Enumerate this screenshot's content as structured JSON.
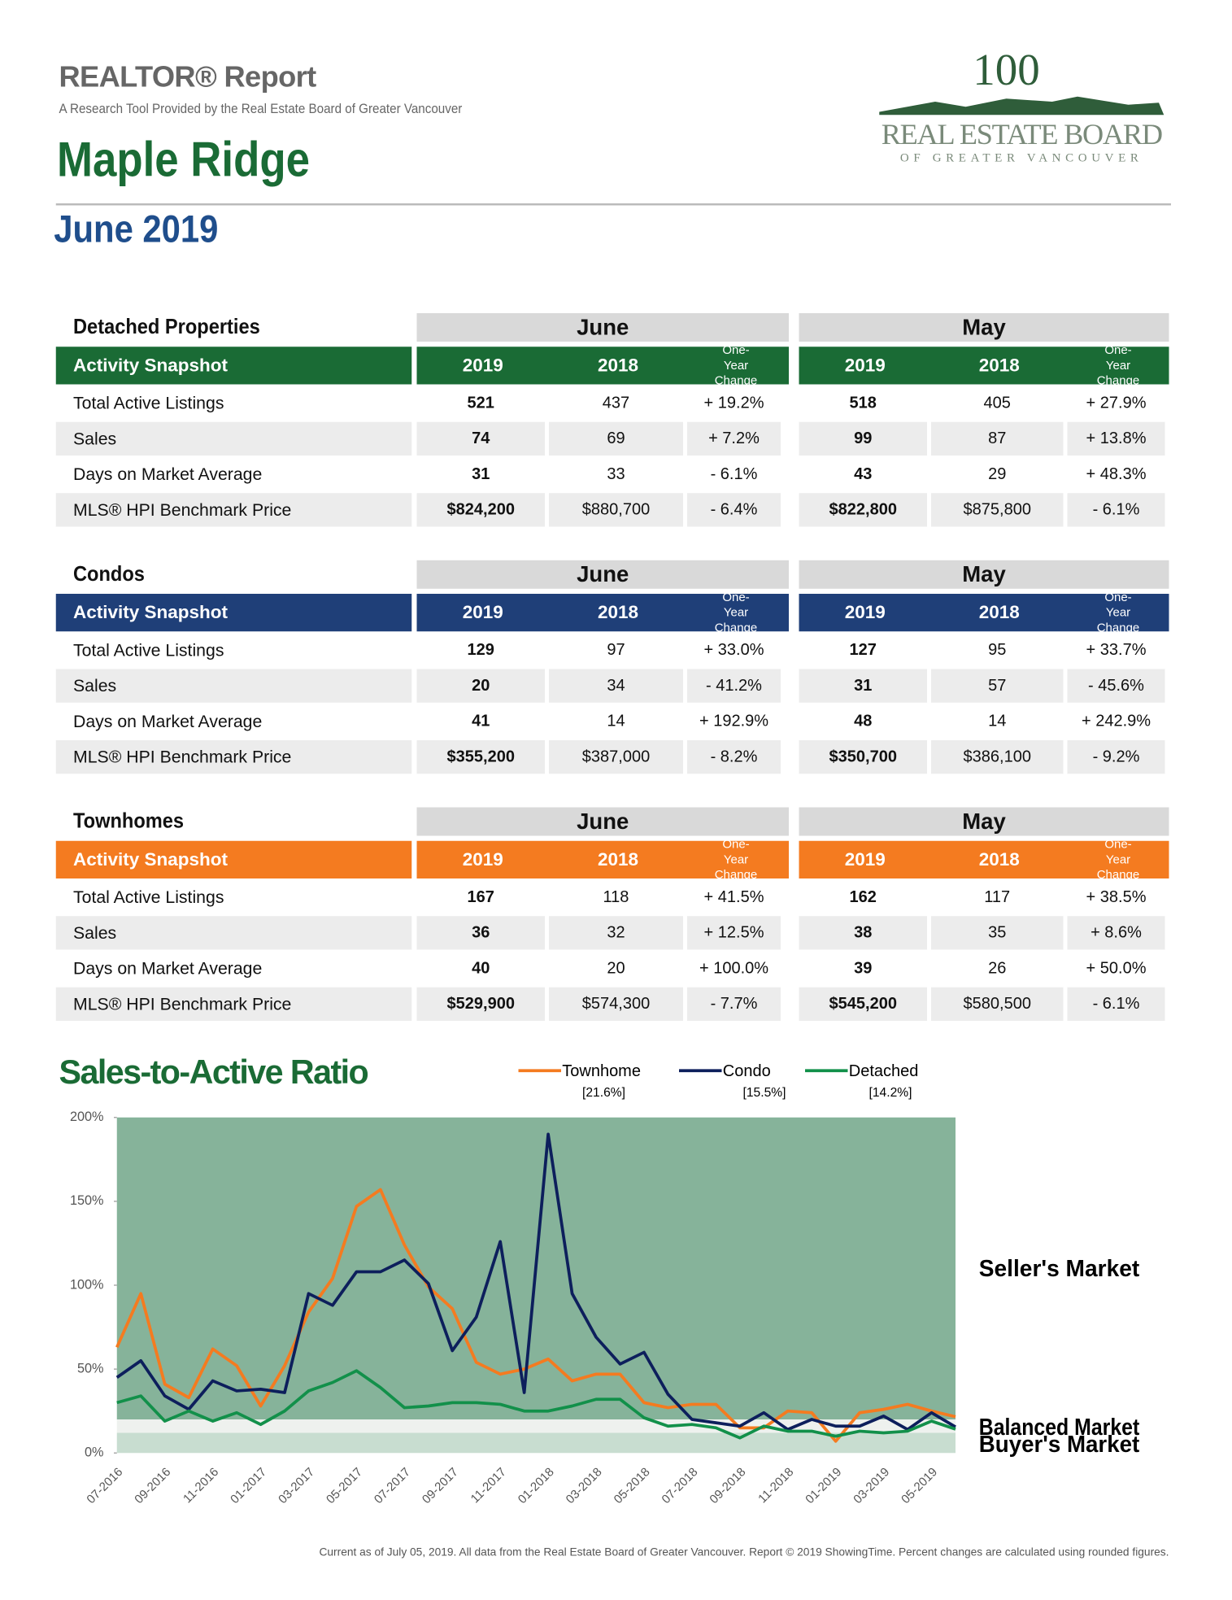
{
  "header": {
    "report": "REALTOR® Report",
    "tagline": "A Research Tool Provided by the Real Estate Board of Greater Vancouver",
    "area": "Maple Ridge",
    "period": "June 2019"
  },
  "logo": {
    "mark": "100",
    "name": "REAL ESTATE BOARD",
    "subtitle": "OF GREATER VANCOUVER"
  },
  "sections": [
    {
      "title": "Detached Properties",
      "color": "#1a6b35",
      "snapshot": "Activity Snapshot",
      "groups": [
        "June",
        "May"
      ],
      "columns": [
        "2019",
        "2018",
        "One-Year Change"
      ],
      "rows": [
        [
          "Total Active Listings",
          "521",
          "437",
          "+ 19.2%",
          "518",
          "405",
          "+ 27.9%"
        ],
        [
          "Sales",
          "74",
          "69",
          "+ 7.2%",
          "99",
          "87",
          "+ 13.8%"
        ],
        [
          "Days on Market Average",
          "31",
          "33",
          "- 6.1%",
          "43",
          "29",
          "+ 48.3%"
        ],
        [
          "MLS® HPI Benchmark Price",
          "$824,200",
          "$880,700",
          "- 6.4%",
          "$822,800",
          "$875,800",
          "- 6.1%"
        ]
      ]
    },
    {
      "title": "Condos",
      "color": "#1f3f78",
      "snapshot": "Activity Snapshot",
      "groups": [
        "June",
        "May"
      ],
      "columns": [
        "2019",
        "2018",
        "One-Year Change"
      ],
      "rows": [
        [
          "Total Active Listings",
          "129",
          "97",
          "+ 33.0%",
          "127",
          "95",
          "+ 33.7%"
        ],
        [
          "Sales",
          "20",
          "34",
          "- 41.2%",
          "31",
          "57",
          "- 45.6%"
        ],
        [
          "Days on Market Average",
          "41",
          "14",
          "+ 192.9%",
          "48",
          "14",
          "+ 242.9%"
        ],
        [
          "MLS® HPI Benchmark Price",
          "$355,200",
          "$387,000",
          "- 8.2%",
          "$350,700",
          "$386,100",
          "- 9.2%"
        ]
      ]
    },
    {
      "title": "Townhomes",
      "color": "#f47b20",
      "snapshot": "Activity Snapshot",
      "groups": [
        "June",
        "May"
      ],
      "columns": [
        "2019",
        "2018",
        "One-Year Change"
      ],
      "rows": [
        [
          "Total Active Listings",
          "167",
          "118",
          "+ 41.5%",
          "162",
          "117",
          "+ 38.5%"
        ],
        [
          "Sales",
          "36",
          "32",
          "+ 12.5%",
          "38",
          "35",
          "+ 8.6%"
        ],
        [
          "Days on Market Average",
          "40",
          "20",
          "+ 100.0%",
          "39",
          "26",
          "+ 50.0%"
        ],
        [
          "MLS® HPI Benchmark Price",
          "$529,900",
          "$574,300",
          "- 7.7%",
          "$545,200",
          "$580,500",
          "- 6.1%"
        ]
      ]
    }
  ],
  "chart_data": {
    "type": "line",
    "title": "Sales-to-Active Ratio",
    "categories": [
      "07-2016",
      null,
      "09-2016",
      null,
      "11-2016",
      null,
      "01-2017",
      null,
      "03-2017",
      null,
      "05-2017",
      null,
      "07-2017",
      null,
      "09-2017",
      null,
      "11-2017",
      null,
      "01-2018",
      null,
      "03-2018",
      null,
      "05-2018",
      null,
      "07-2018",
      null,
      "09-2018",
      null,
      "11-2018",
      null,
      "01-2019",
      null,
      "03-2019",
      null,
      "05-2019",
      null
    ],
    "series": [
      {
        "name": "Townhome",
        "legend_label": "[21.6%]",
        "color": "#f47b20",
        "values": [
          63,
          95,
          41,
          33,
          62,
          52,
          28,
          52,
          84,
          104,
          147,
          157,
          124,
          99,
          86,
          54,
          47,
          50,
          56,
          43,
          47,
          47,
          30,
          27,
          29,
          29,
          15,
          15,
          25,
          24,
          7,
          24,
          26,
          29,
          25,
          21.6
        ]
      },
      {
        "name": "Condo",
        "legend_label": "[15.5%]",
        "color": "#0d1f5c",
        "values": [
          45,
          55,
          34,
          26,
          43,
          37,
          38,
          36,
          95,
          88,
          108,
          108,
          115,
          101,
          61,
          81,
          126,
          36,
          190,
          95,
          69,
          53,
          60,
          35,
          20,
          18,
          16,
          24,
          14,
          20,
          16,
          16,
          22,
          14,
          24,
          15.5
        ]
      },
      {
        "name": "Detached",
        "legend_label": "[14.2%]",
        "color": "#12904a",
        "values": [
          30,
          34,
          19,
          25,
          19,
          24,
          17,
          25,
          37,
          42,
          49,
          39,
          27,
          28,
          30,
          30,
          29,
          25,
          25,
          28,
          32,
          32,
          21,
          16,
          17,
          15,
          9,
          16,
          13,
          13,
          10,
          13,
          12,
          13,
          19,
          14.2
        ]
      }
    ],
    "market_bands": [
      {
        "name": "Seller's Market",
        "from": 20,
        "to": 200,
        "color": "#86b39a"
      },
      {
        "name": "Balanced Market",
        "from": 12,
        "to": 20,
        "color": "#eef1ee"
      },
      {
        "name": "Buyer's Market",
        "from": 0,
        "to": 12,
        "color": "#c8ddd0"
      }
    ],
    "ylim": [
      0,
      200
    ],
    "yticks": [
      {
        "value": 0,
        "label": "0%"
      },
      {
        "value": 50,
        "label": "50%"
      },
      {
        "value": 100,
        "label": "100%"
      },
      {
        "value": 150,
        "label": "150%"
      },
      {
        "value": 200,
        "label": "200%"
      }
    ]
  },
  "footer": "Current as of July 05, 2019. All data from the Real Estate Board of Greater Vancouver. Report © 2019 ShowingTime. Percent changes are calculated using rounded figures."
}
